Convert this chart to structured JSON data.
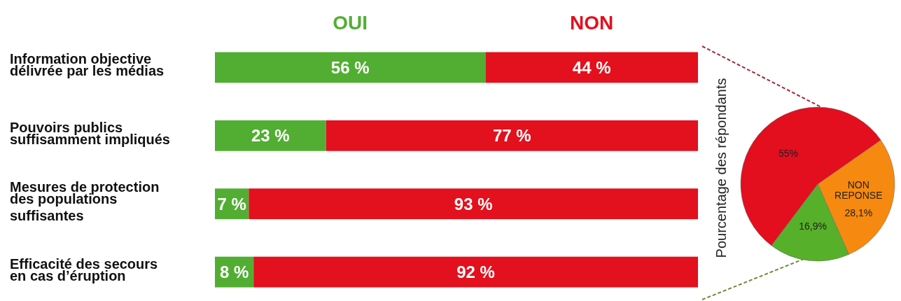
{
  "chart_data": [
    {
      "type": "bar",
      "orientation": "horizontal",
      "stacked": true,
      "legend": "top",
      "categories": [
        "Information objective délivrée par les médias",
        "Pouvoirs publics suffisamment impliqués",
        "Mesures de protection des populations suffisantes",
        "Efficacité des secours en cas d’éruption"
      ],
      "series": [
        {
          "name": "OUI",
          "color": "#52ae32",
          "values": [
            56,
            23,
            7,
            8
          ],
          "value_labels": [
            "56 %",
            "23 %",
            "7 %",
            "8 %"
          ]
        },
        {
          "name": "NON",
          "color": "#e3101e",
          "values": [
            44,
            77,
            93,
            92
          ],
          "value_labels": [
            "44 %",
            "77 %",
            "93 %",
            "92 %"
          ]
        }
      ]
    },
    {
      "type": "pie",
      "ylabel": "Pourcentage des répondants",
      "categories": [
        "NON REPONSE",
        null,
        null
      ],
      "values": [
        28.1,
        16.9,
        55
      ],
      "colors": [
        "#f6890f",
        "#56b02a",
        "#e30e1e"
      ],
      "value_labels": [
        "28,1%",
        "16,9%",
        "55%"
      ]
    }
  ]
}
